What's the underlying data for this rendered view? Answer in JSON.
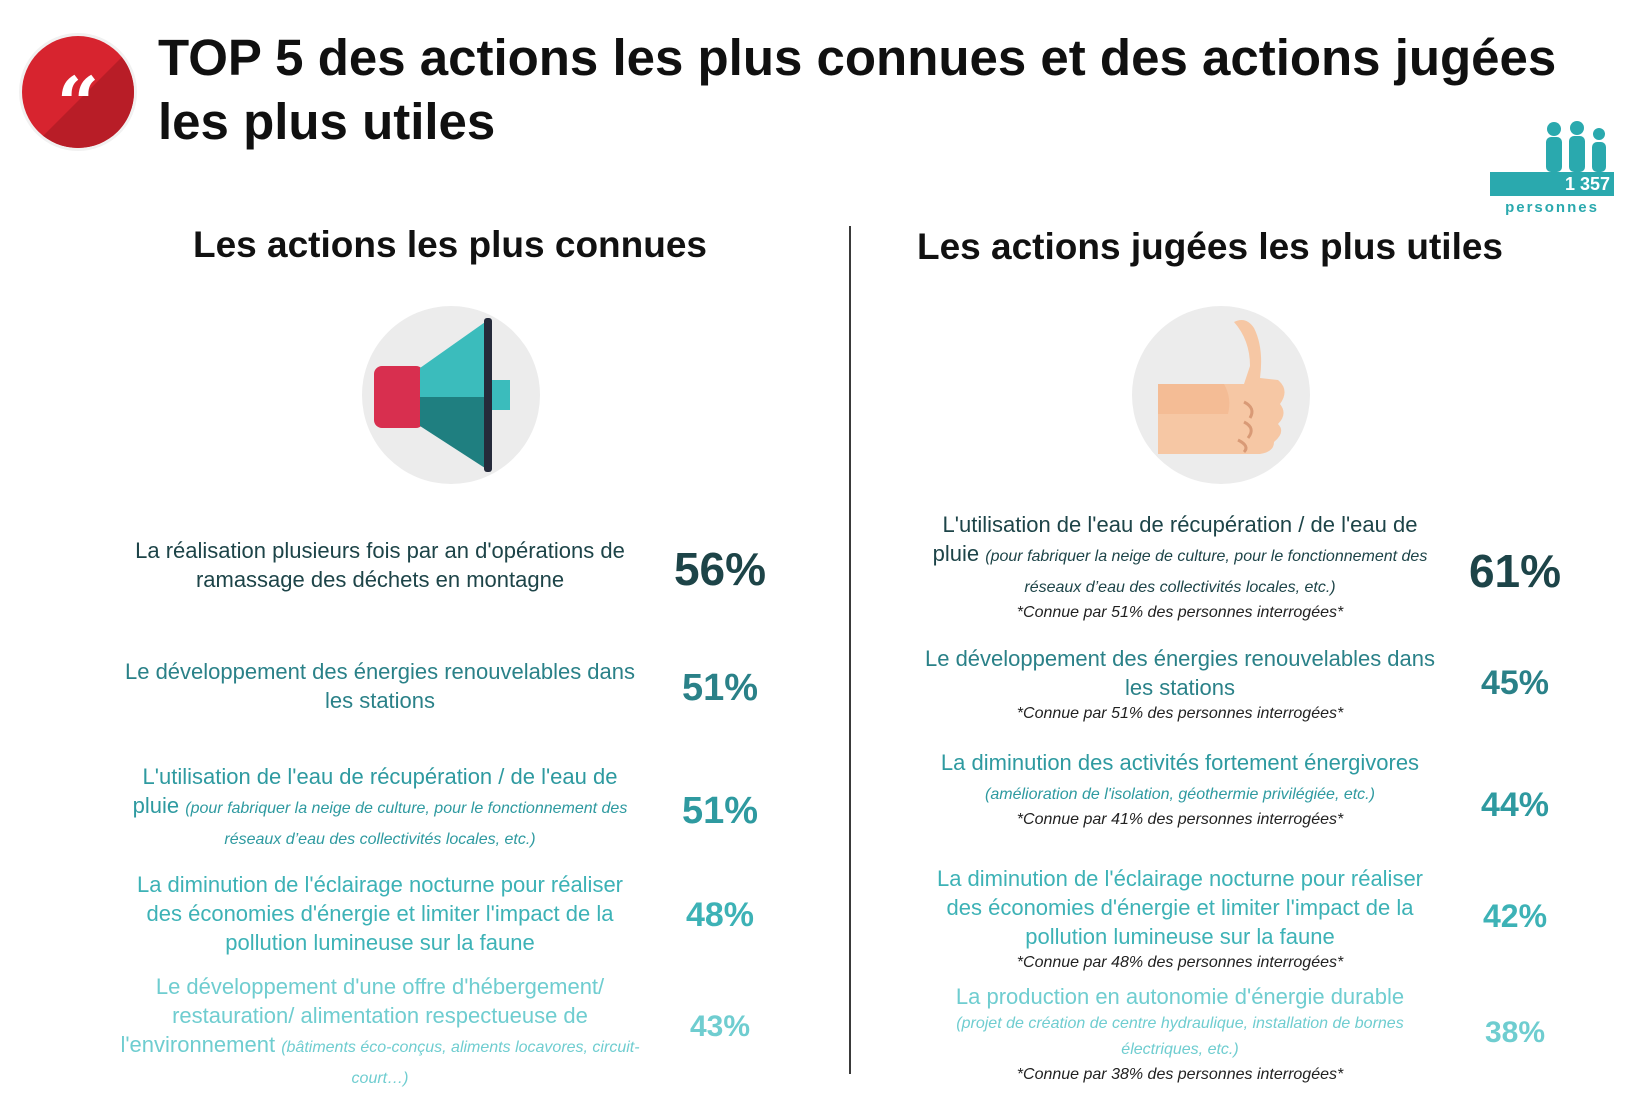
{
  "header": {
    "title": "TOP 5 des actions les plus connues et des actions jugées les plus utiles",
    "quote_icon": "quote-icon",
    "respondents_count": "1 357",
    "respondents_label": "personnes"
  },
  "left": {
    "title": "Les actions les plus connues",
    "icon": "megaphone-icon",
    "items": [
      {
        "text": "La réalisation plusieurs fois par an d'opérations de ramassage des déchets en montagne",
        "note": "",
        "pct": "56%"
      },
      {
        "text": "Le développement des énergies renouvelables dans les stations",
        "note": "",
        "pct": "51%"
      },
      {
        "text": "L'utilisation de l'eau de récupération / de l'eau de pluie",
        "note": "(pour fabriquer la neige de culture, pour le fonctionnement des réseaux d’eau des collectivités locales, etc.)",
        "pct": "51%"
      },
      {
        "text": "La diminution de l'éclairage nocturne pour réaliser des économies d'énergie et limiter l'impact de la pollution lumineuse sur la faune",
        "note": "",
        "pct": "48%"
      },
      {
        "text": "Le développement d'une offre d'hébergement/ restauration/ alimentation respectueuse de l'environnement",
        "note": "(bâtiments éco-conçus, aliments locavores, circuit-court…)",
        "pct": "43%"
      }
    ]
  },
  "right": {
    "title": "Les actions jugées les plus utiles",
    "icon": "thumbs-up-icon",
    "items": [
      {
        "text": "L'utilisation de l'eau de récupération / de l'eau de pluie",
        "note": "(pour fabriquer la neige de culture, pour le fonctionnement des réseaux d’eau des collectivités locales, etc.)",
        "known": "*Connue par 51% des personnes interrogées*",
        "pct": "61%"
      },
      {
        "text": "Le développement des énergies renouvelables dans les stations",
        "note": "",
        "known": "*Connue par 51% des personnes interrogées*",
        "pct": "45%"
      },
      {
        "text": "La diminution des activités fortement énergivores",
        "note": "(amélioration de l'isolation, géothermie privilégiée, etc.)",
        "known": "*Connue par 41% des personnes interrogées*",
        "pct": "44%"
      },
      {
        "text": "La diminution de l'éclairage nocturne pour réaliser des économies d'énergie et limiter l'impact de la pollution lumineuse sur la faune",
        "note": "",
        "known": "*Connue par 48% des personnes interrogées*",
        "pct": "42%"
      },
      {
        "text": "La production en autonomie d'énergie durable",
        "note": "(projet de création de centre hydraulique, installation de bornes électriques, etc.)",
        "known": "*Connue par 38% des personnes interrogées*",
        "pct": "38%"
      }
    ]
  },
  "colors": {
    "accent_red": "#d7242f",
    "teal": "#2aa9ae",
    "rank_1": "#1d4448",
    "rank_2": "#2a8188",
    "rank_3": "#2e9aa0",
    "rank_4": "#3db2b6",
    "rank_5": "#6fcdd0"
  }
}
